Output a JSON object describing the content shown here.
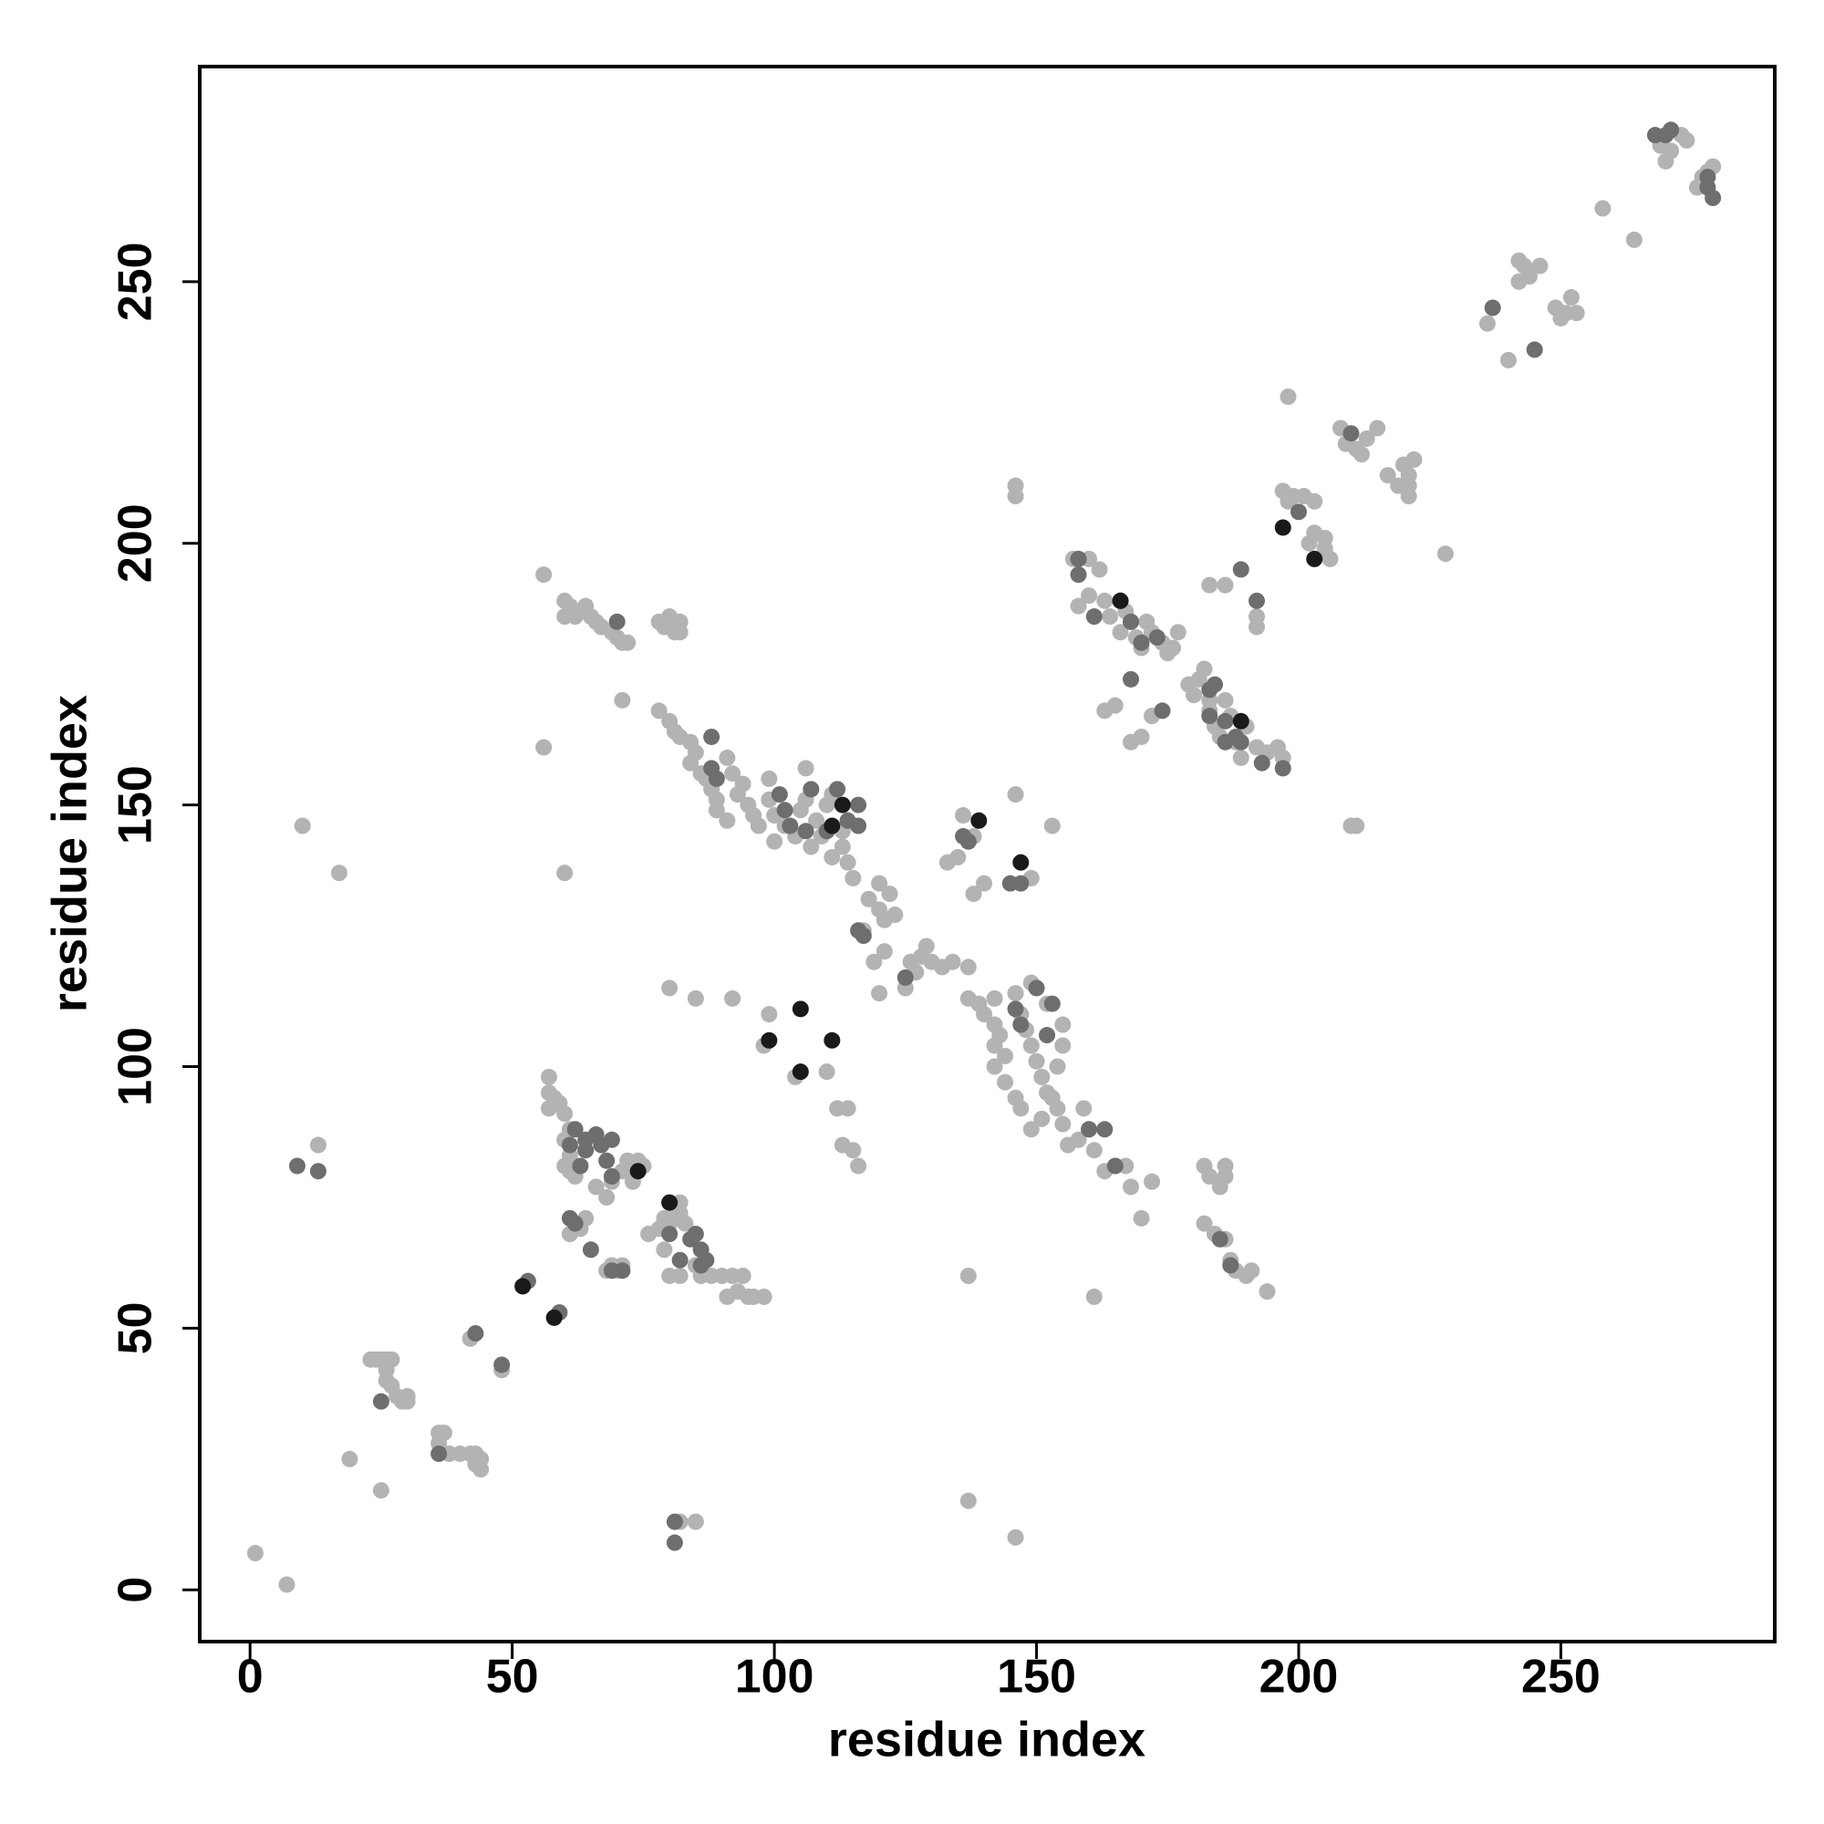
{
  "chart_data": {
    "type": "scatter",
    "xlabel": "residue index",
    "ylabel": "residue index",
    "xlim": [
      -9.6,
      290.8
    ],
    "ylim": [
      -9.9,
      291.1
    ],
    "xticks": [
      0,
      50,
      100,
      150,
      200,
      250
    ],
    "yticks": [
      0,
      50,
      100,
      150,
      200,
      250
    ],
    "series": [
      {
        "color": "#b3b3b3",
        "x": [
          1,
          7,
          10,
          17,
          13,
          19,
          25,
          23,
          24,
          25,
          26,
          27,
          26,
          26,
          27,
          28,
          29,
          30,
          30,
          36,
          37,
          36,
          38,
          40,
          42,
          43,
          43,
          44,
          44,
          42,
          48,
          82,
          85,
          137,
          146,
          56,
          60,
          57,
          57,
          58,
          59,
          57,
          60,
          61,
          60,
          61,
          60,
          61,
          62,
          62,
          61,
          63,
          64,
          68,
          69,
          70,
          71,
          66,
          68,
          69,
          71,
          72,
          74,
          75,
          73,
          76,
          78,
          79,
          79,
          80,
          81,
          82,
          82,
          83,
          80,
          82,
          85,
          86,
          88,
          90,
          92,
          94,
          93,
          95,
          96,
          98,
          91,
          80,
          85,
          92,
          56,
          60,
          61,
          60,
          62,
          63,
          64,
          65,
          66,
          67,
          69,
          70,
          71,
          72,
          71,
          78,
          79,
          80,
          81,
          82,
          82,
          78,
          80,
          81,
          82,
          84,
          85,
          84,
          86,
          87,
          88,
          89,
          89,
          91,
          92,
          93,
          91,
          94,
          95,
          96,
          97,
          99,
          99,
          100,
          100,
          102,
          104,
          105,
          106,
          107,
          108,
          109,
          110,
          111,
          113,
          113,
          111,
          114,
          115,
          106,
          117,
          118,
          120,
          120,
          121,
          122,
          123,
          119,
          121,
          120,
          125,
          126,
          127,
          128,
          129,
          130,
          132,
          134,
          137,
          133,
          135,
          136,
          138,
          138,
          140,
          146,
          149,
          153,
          137,
          139,
          140,
          142,
          142,
          143,
          142,
          142,
          144,
          144,
          146,
          147,
          148,
          149,
          150,
          151,
          152,
          154,
          146,
          147,
          149,
          151,
          153,
          155,
          156,
          158,
          159,
          160,
          161,
          163,
          165,
          167,
          168,
          170,
          172,
          149,
          152,
          155,
          155,
          154,
          99,
          98,
          104,
          110,
          112,
          114,
          113,
          115,
          116,
          137,
          161,
          146,
          146,
          157,
          160,
          162,
          160,
          158,
          163,
          164,
          166,
          167,
          168,
          169,
          170,
          171,
          172,
          174,
          175,
          177,
          176,
          163,
          165,
          168,
          170,
          172,
          179,
          180,
          181,
          182,
          183,
          183,
          184,
          185,
          186,
          187,
          188,
          189,
          190,
          192,
          194,
          196,
          197,
          183,
          186,
          192,
          192,
          182,
          183,
          185,
          186,
          186,
          182,
          184,
          186,
          187,
          188,
          190,
          191,
          194,
          198,
          210,
          211,
          197,
          198,
          199,
          201,
          203,
          202,
          203,
          205,
          205,
          206,
          208,
          209,
          211,
          212,
          213,
          215,
          217,
          219,
          220,
          221,
          221,
          222,
          221,
          228,
          236,
          240,
          242,
          243,
          242,
          244,
          246,
          249,
          250,
          251,
          252,
          253,
          258,
          264,
          269,
          270,
          271,
          273,
          274,
          276,
          277,
          278,
          279
        ],
        "y": [
          7,
          1,
          146,
          137,
          85,
          25,
          19,
          44,
          44,
          44,
          44,
          44,
          42,
          40,
          39,
          37,
          36,
          37,
          36,
          30,
          30,
          28,
          26,
          26,
          26,
          26,
          24,
          25,
          23,
          48,
          42,
          13,
          13,
          17,
          10,
          161,
          137,
          98,
          95,
          94,
          93,
          92,
          91,
          88,
          86,
          83,
          81,
          80,
          79,
          70,
          68,
          69,
          71,
          61,
          62,
          61,
          62,
          77,
          75,
          78,
          80,
          82,
          82,
          81,
          78,
          68,
          69,
          65,
          71,
          70,
          73,
          74,
          72,
          70,
          60,
          60,
          62,
          60,
          60,
          60,
          60,
          60,
          57,
          56,
          56,
          56,
          56,
          115,
          113,
          113,
          194,
          189,
          188,
          186,
          186,
          187,
          188,
          186,
          185,
          184,
          183,
          182,
          181,
          181,
          170,
          185,
          184,
          186,
          183,
          185,
          183,
          168,
          166,
          164,
          163,
          162,
          160,
          158,
          156,
          155,
          153,
          151,
          149,
          159,
          156,
          152,
          147,
          154,
          150,
          148,
          146,
          155,
          151,
          148,
          143,
          146,
          144,
          149,
          151,
          142,
          147,
          144,
          150,
          152,
          145,
          142,
          140,
          139,
          136,
          157,
          126,
          132,
          135,
          130,
          128,
          133,
          129,
          120,
          122,
          114,
          115,
          120,
          118,
          121,
          123,
          120,
          119,
          120,
          119,
          139,
          140,
          148,
          144,
          133,
          135,
          152,
          136,
          146,
          113,
          112,
          110,
          113,
          108,
          106,
          104,
          100,
          102,
          97,
          114,
          110,
          107,
          104,
          101,
          98,
          95,
          92,
          94,
          92,
          88,
          90,
          94,
          89,
          85,
          86,
          92,
          88,
          84,
          80,
          81,
          81,
          77,
          71,
          78,
          116,
          112,
          108,
          104,
          100,
          110,
          104,
          98,
          99,
          92,
          92,
          85,
          84,
          81,
          60,
          56,
          211,
          209,
          197,
          197,
          195,
          190,
          188,
          189,
          186,
          183,
          187,
          185,
          182,
          180,
          185,
          183,
          181,
          179,
          183,
          180,
          168,
          169,
          162,
          163,
          167,
          173,
          171,
          174,
          176,
          170,
          168,
          165,
          163,
          170,
          167,
          162,
          159,
          165,
          161,
          160,
          161,
          159,
          192,
          192,
          186,
          184,
          81,
          79,
          77,
          81,
          79,
          70,
          68,
          67,
          63,
          61,
          60,
          61,
          57,
          228,
          146,
          146,
          210,
          208,
          209,
          209,
          208,
          200,
          202,
          201,
          199,
          197,
          222,
          219,
          218,
          217,
          220,
          222,
          213,
          211,
          215,
          213,
          211,
          216,
          209,
          198,
          242,
          235,
          254,
          253,
          250,
          251,
          253,
          245,
          243,
          244,
          247,
          244,
          264,
          258,
          276,
          273,
          275,
          278,
          277,
          268,
          270,
          271,
          272
        ]
      },
      {
        "color": "#6e6e6e",
        "x": [
          9,
          13,
          25,
          36,
          43,
          48,
          53,
          59,
          61,
          62,
          64,
          64,
          66,
          67,
          69,
          68,
          69,
          63,
          61,
          62,
          65,
          69,
          71,
          80,
          82,
          84,
          85,
          86,
          87,
          86,
          81,
          81,
          70,
          88,
          88,
          89,
          101,
          102,
          106,
          107,
          110,
          112,
          114,
          116,
          116,
          103,
          116,
          117,
          125,
          136,
          137,
          147,
          145,
          146,
          147,
          150,
          153,
          152,
          160,
          163,
          165,
          158,
          158,
          161,
          166,
          168,
          168,
          170,
          174,
          173,
          183,
          184,
          183,
          186,
          186,
          188,
          189,
          193,
          197,
          189,
          192,
          185,
          187,
          200,
          210,
          237,
          245,
          268,
          270,
          271,
          278,
          279,
          278
        ],
        "y": [
          81,
          80,
          36,
          26,
          49,
          43,
          59,
          53,
          85,
          88,
          86,
          84,
          87,
          85,
          86,
          82,
          79,
          81,
          71,
          70,
          65,
          61,
          61,
          68,
          63,
          67,
          68,
          65,
          63,
          62,
          9,
          13,
          185,
          163,
          157,
          155,
          152,
          149,
          145,
          153,
          145,
          153,
          147,
          150,
          146,
          146,
          126,
          125,
          117,
          144,
          143,
          135,
          135,
          111,
          108,
          115,
          112,
          106,
          88,
          88,
          81,
          194,
          197,
          186,
          189,
          185,
          174,
          181,
          168,
          182,
          172,
          173,
          167,
          162,
          166,
          163,
          162,
          158,
          157,
          195,
          189,
          67,
          62,
          206,
          221,
          245,
          237,
          278,
          278,
          279,
          268,
          266,
          270
        ]
      },
      {
        "color": "#1a1a1a",
        "x": [
          52,
          58,
          74,
          80,
          99,
          105,
          105,
          111,
          111,
          113,
          139,
          147,
          189,
          166,
          203,
          197
        ],
        "y": [
          58,
          52,
          80,
          74,
          105,
          99,
          111,
          105,
          146,
          150,
          147,
          139,
          166,
          189,
          197,
          203
        ]
      }
    ]
  }
}
